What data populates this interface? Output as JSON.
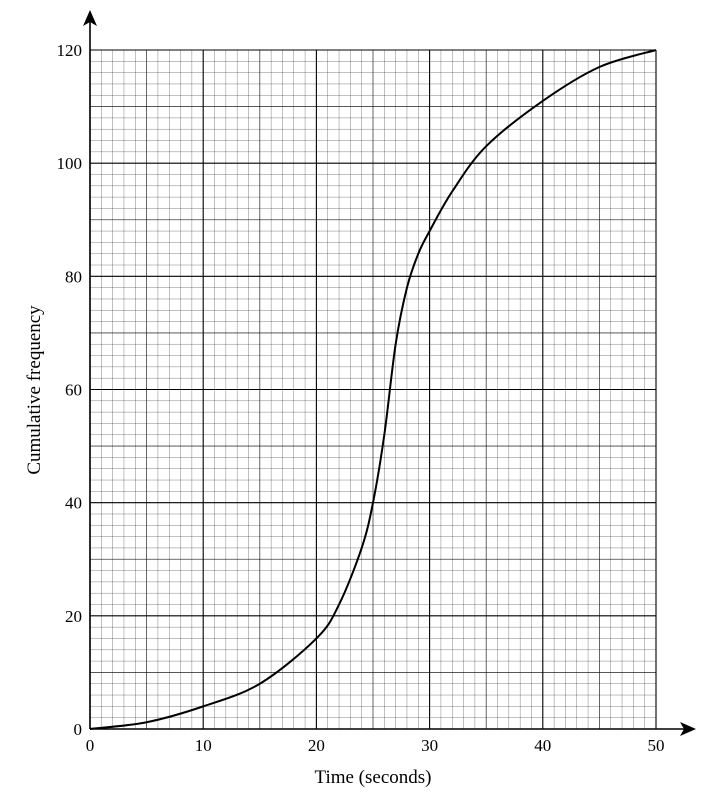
{
  "chart_data": {
    "type": "line",
    "title": "",
    "xlabel": "Time (seconds)",
    "ylabel": "Cumulative frequency",
    "xlim": [
      0,
      50
    ],
    "ylim": [
      0,
      120
    ],
    "x_ticks": [
      "0",
      "10",
      "20",
      "30",
      "40",
      "50"
    ],
    "y_ticks": [
      "0",
      "20",
      "40",
      "60",
      "80",
      "100",
      "120"
    ],
    "grid": "graph paper (major every 10 s / 20, minor every 1 s / 2)",
    "legend": "none",
    "series": [
      {
        "x": [
          0,
          5,
          10,
          15,
          20,
          22,
          24,
          25,
          26,
          27,
          28,
          29,
          30,
          32,
          35,
          40,
          45,
          50
        ],
        "y": [
          0,
          1.2,
          4,
          8,
          16,
          22,
          32,
          40,
          52,
          68,
          78,
          84,
          88,
          95,
          103,
          111,
          117,
          120
        ]
      }
    ],
    "colors": {
      "curve": "#000000",
      "grid": "#000000"
    }
  }
}
